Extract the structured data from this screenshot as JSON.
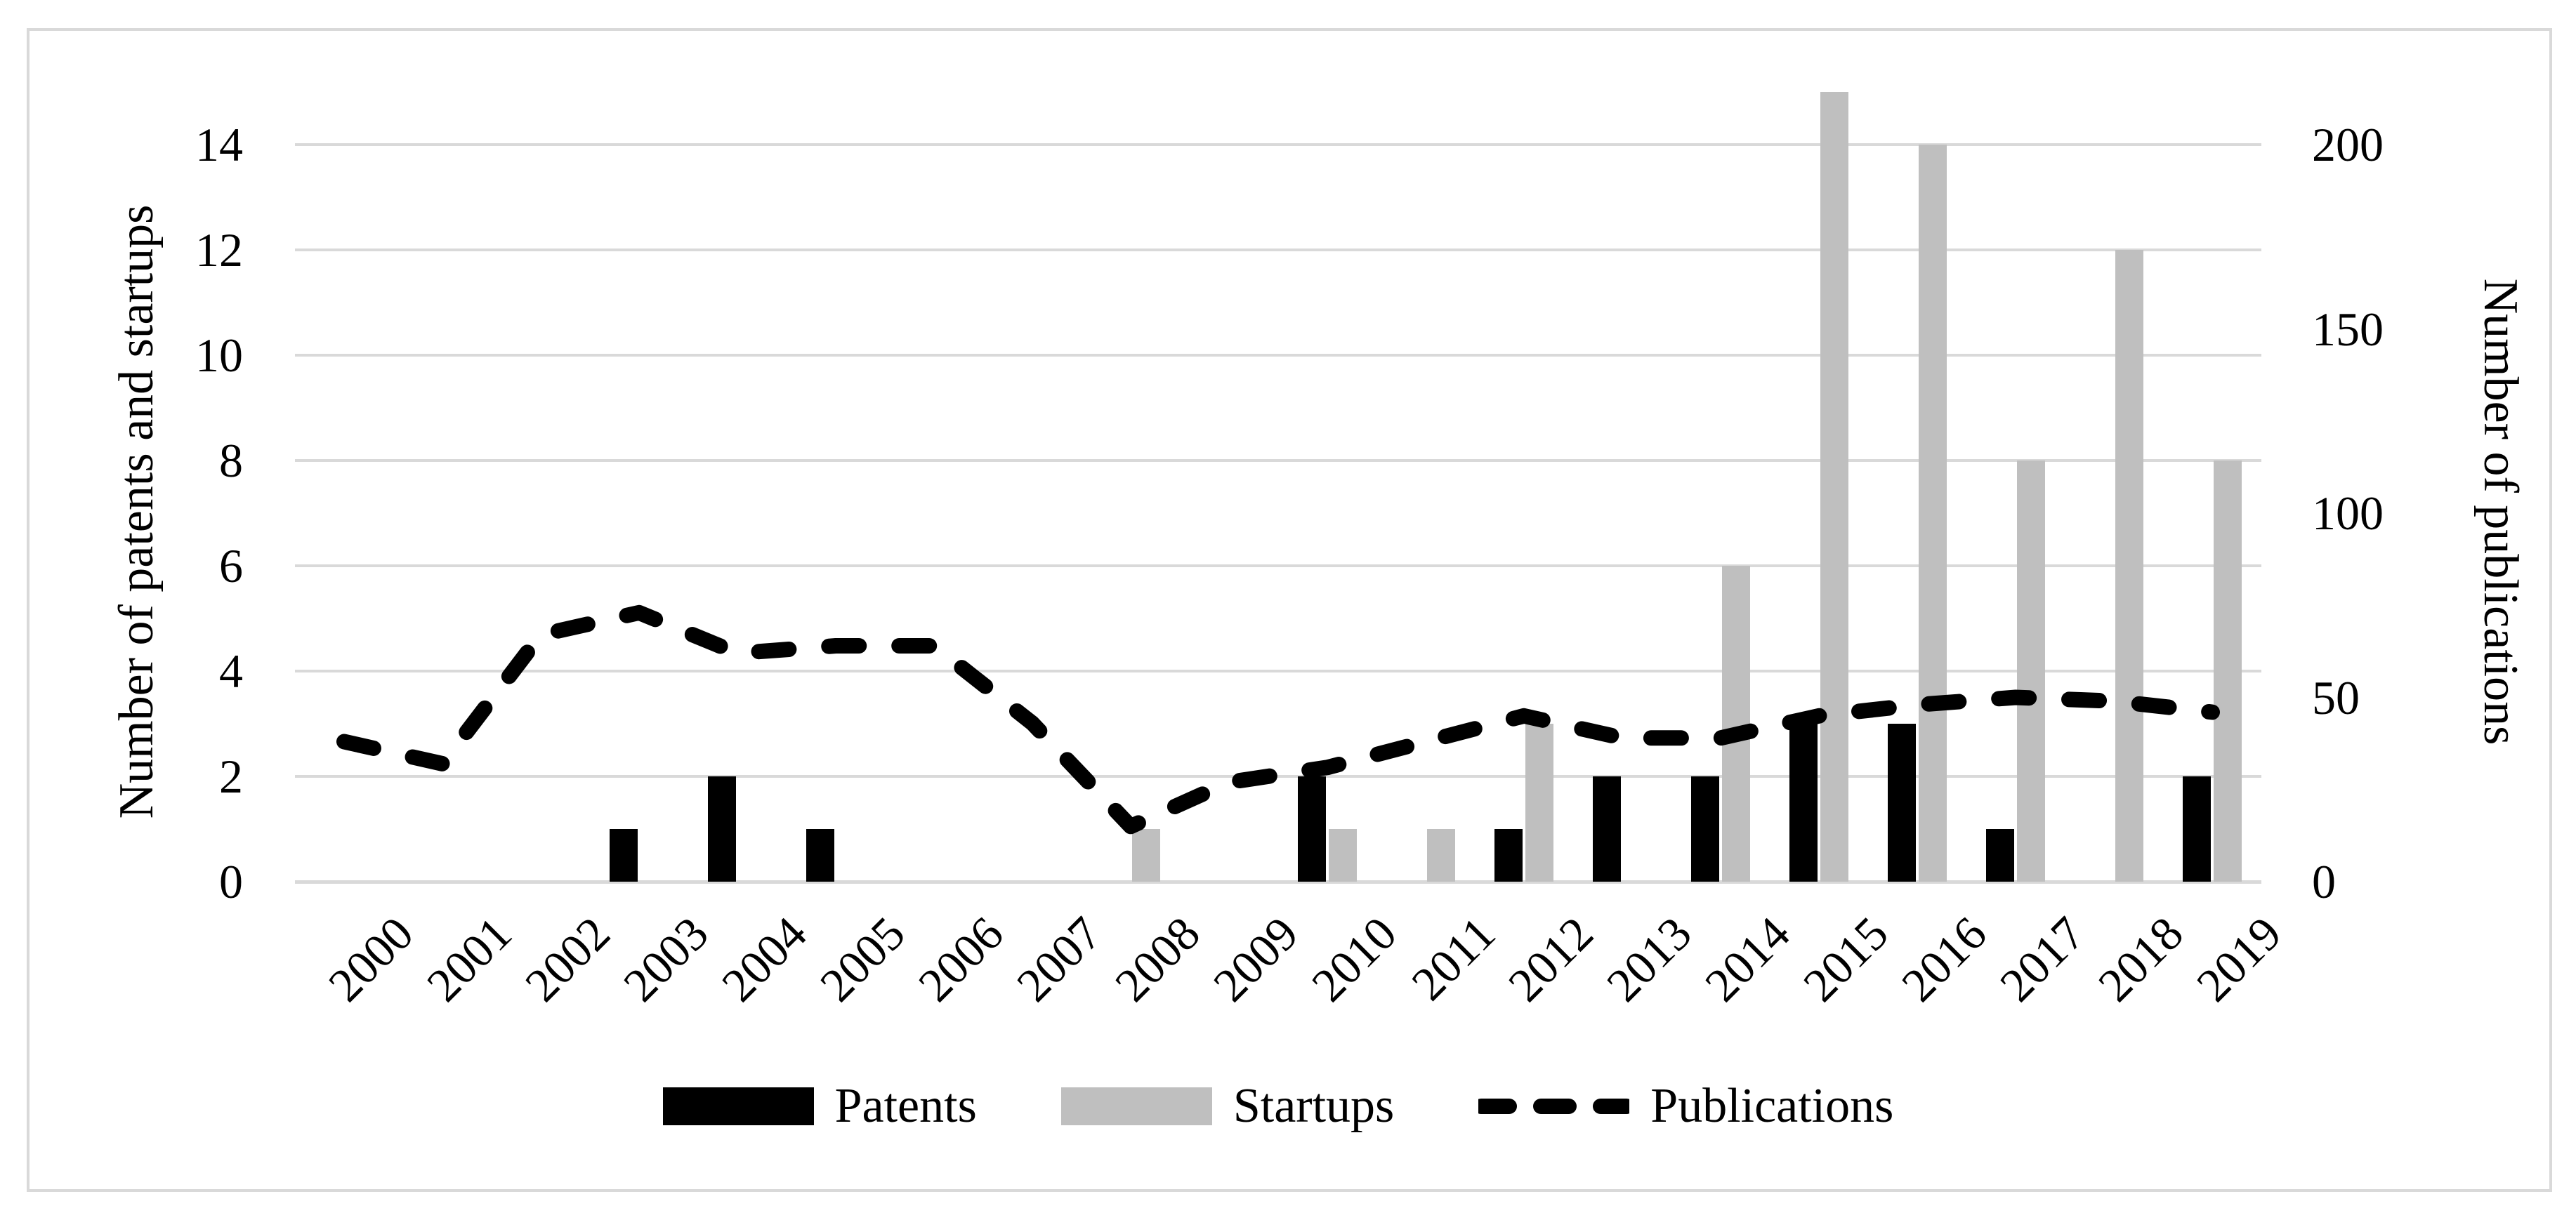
{
  "chart_data": {
    "type": "combo",
    "title": "",
    "categories": [
      "2000",
      "2001",
      "2002",
      "2003",
      "2004",
      "2005",
      "2006",
      "2007",
      "2008",
      "2009",
      "2010",
      "2011",
      "2012",
      "2013",
      "2014",
      "2015",
      "2016",
      "2017",
      "2018",
      "2019"
    ],
    "series": [
      {
        "name": "Patents",
        "type": "bar",
        "axis": "left",
        "color": "#000000",
        "values": [
          0,
          0,
          0,
          1,
          2,
          1,
          0,
          0,
          0,
          0,
          2,
          0,
          1,
          2,
          2,
          3,
          3,
          1,
          0,
          2
        ]
      },
      {
        "name": "Startups",
        "type": "bar",
        "axis": "left",
        "color": "#bfbfbf",
        "values": [
          0,
          0,
          0,
          0,
          0,
          0,
          0,
          0,
          1,
          0,
          1,
          1,
          3,
          0,
          6,
          15,
          14,
          8,
          12,
          8
        ]
      },
      {
        "name": "Publications",
        "type": "line",
        "axis": "right",
        "color": "#000000",
        "dashed": true,
        "values": [
          38,
          32,
          67,
          73,
          62,
          64,
          64,
          43,
          15,
          27,
          31,
          38,
          45,
          39,
          39,
          45,
          48,
          50,
          49,
          46
        ]
      }
    ],
    "y_left": {
      "label": "Number of patents and startups",
      "ticks": [
        0,
        2,
        4,
        6,
        8,
        10,
        12,
        14
      ],
      "max": 15
    },
    "y_right": {
      "label": "Number of publications",
      "ticks": [
        0,
        50,
        100,
        150,
        200
      ],
      "max": 214.29
    },
    "x_axis": {
      "tick_rotation_deg": -45
    },
    "grid": "horizontal",
    "legend_position": "bottom",
    "colors": {
      "grid": "#d9d9d9",
      "border": "#d9d9d9",
      "text": "#000000"
    }
  }
}
